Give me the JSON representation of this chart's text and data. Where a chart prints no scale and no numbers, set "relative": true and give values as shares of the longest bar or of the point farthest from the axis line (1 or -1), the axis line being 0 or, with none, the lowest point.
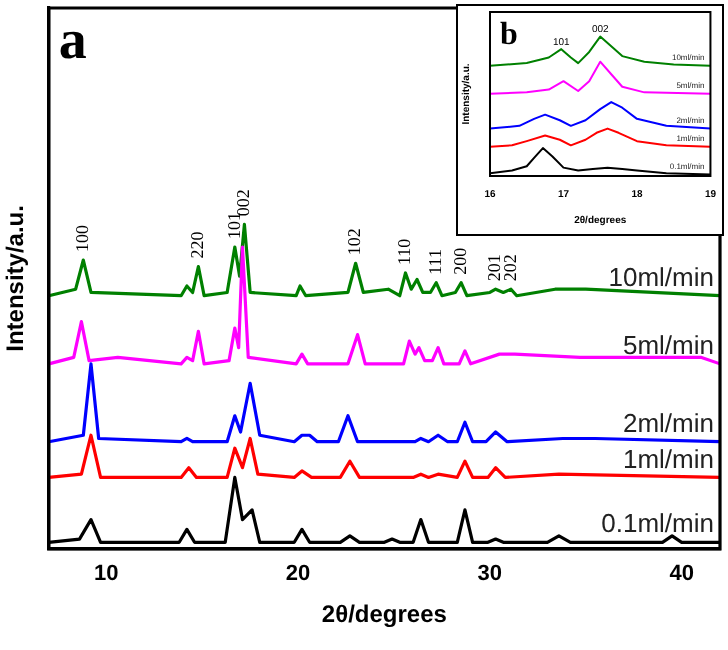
{
  "chart_data": [
    {
      "type": "line",
      "relative": true,
      "xlabel": "2θ/degrees",
      "ylabel": "Intensity/a.u.",
      "xlim": [
        7,
        42
      ],
      "xticks": [
        10,
        20,
        30,
        40
      ],
      "tick_labels": "x",
      "annotations": [
        "a",
        {
          "text": "100",
          "x": 8.8,
          "y": 0.89
        },
        {
          "text": "220",
          "x": 14.8,
          "y": 0.87
        },
        {
          "text": "101",
          "x": 16.7,
          "y": 0.93
        },
        {
          "text": "002",
          "x": 17.2,
          "y": 1
        },
        {
          "text": "102",
          "x": 23.0,
          "y": 0.88
        },
        {
          "text": "110",
          "x": 25.6,
          "y": 0.85
        },
        {
          "text": "111",
          "x": 27.2,
          "y": 0.82
        },
        {
          "text": "200",
          "x": 28.5,
          "y": 0.82
        },
        {
          "text": "201",
          "x": 30.3,
          "y": 0.8
        },
        {
          "text": "202",
          "x": 31.1,
          "y": 0.8
        }
      ],
      "series": [
        {
          "name": "0.1ml/min",
          "color": "#000000",
          "x": [
            7,
            8.6,
            9.2,
            9.7,
            13.8,
            14.2,
            14.6,
            16.2,
            16.7,
            17.1,
            17.6,
            18.0,
            19.8,
            20.2,
            20.6,
            22.2,
            22.7,
            23.2,
            24.5,
            24.9,
            25.3,
            26,
            26.4,
            26.8,
            28.3,
            28.7,
            29.1,
            29.9,
            30.3,
            30.7,
            33,
            33.6,
            34.2,
            39,
            39.5,
            40,
            42
          ],
          "values": [
            0.02,
            0.03,
            0.09,
            0.02,
            0.02,
            0.06,
            0.02,
            0.02,
            0.22,
            0.09,
            0.12,
            0.02,
            0.02,
            0.06,
            0.02,
            0.02,
            0.04,
            0.02,
            0.02,
            0.03,
            0.02,
            0.02,
            0.09,
            0.02,
            0.02,
            0.12,
            0.02,
            0.02,
            0.03,
            0.02,
            0.02,
            0.04,
            0.02,
            0.02,
            0.04,
            0.02,
            0.02
          ]
        },
        {
          "name": "1ml/min",
          "color": "#ff0000",
          "x": [
            7,
            8.7,
            9.2,
            9.7,
            13.9,
            14.3,
            14.7,
            16.3,
            16.7,
            17.1,
            17.5,
            17.9,
            19.8,
            20.2,
            20.7,
            22.2,
            22.7,
            23.2,
            26,
            26.4,
            26.8,
            27.3,
            28.3,
            28.7,
            29.1,
            29.9,
            30.3,
            30.8,
            33.6,
            42
          ],
          "values": [
            0.22,
            0.23,
            0.35,
            0.22,
            0.22,
            0.25,
            0.22,
            0.22,
            0.31,
            0.25,
            0.34,
            0.23,
            0.22,
            0.24,
            0.22,
            0.22,
            0.27,
            0.22,
            0.22,
            0.23,
            0.22,
            0.23,
            0.22,
            0.27,
            0.22,
            0.22,
            0.25,
            0.22,
            0.23,
            0.22
          ]
        },
        {
          "name": "2ml/min",
          "color": "#0000ff",
          "x": [
            7,
            8.8,
            9.2,
            9.6,
            13.9,
            14.2,
            14.5,
            16.3,
            16.7,
            17.0,
            17.5,
            18.0,
            19.8,
            20.2,
            20.4,
            20.6,
            21,
            22.1,
            22.6,
            23.1,
            26.1,
            26.4,
            26.8,
            27.3,
            27.8,
            28.3,
            28.7,
            29.1,
            29.8,
            30.3,
            30.9,
            33.8,
            35.5,
            42
          ],
          "values": [
            0.33,
            0.35,
            0.57,
            0.34,
            0.33,
            0.34,
            0.33,
            0.33,
            0.41,
            0.36,
            0.51,
            0.35,
            0.33,
            0.35,
            0.35,
            0.35,
            0.33,
            0.33,
            0.41,
            0.33,
            0.33,
            0.34,
            0.33,
            0.35,
            0.33,
            0.33,
            0.39,
            0.33,
            0.33,
            0.36,
            0.33,
            0.34,
            0.34,
            0.33
          ]
        },
        {
          "name": "5ml/min",
          "color": "#ff00ff",
          "x": [
            7,
            8.3,
            8.7,
            9.1,
            10.6,
            13.9,
            14.2,
            14.5,
            14.8,
            15.1,
            16.4,
            16.7,
            16.9,
            17.1,
            17.4,
            19.9,
            20.2,
            20.5,
            22.6,
            23.1,
            23.5,
            25.5,
            25.8,
            26.1,
            26.3,
            26.6,
            27.0,
            27.3,
            27.6,
            28.4,
            28.7,
            29,
            30.5,
            31.3,
            34.7,
            41,
            42
          ],
          "values": [
            0.57,
            0.59,
            0.7,
            0.58,
            0.59,
            0.57,
            0.59,
            0.58,
            0.67,
            0.57,
            0.58,
            0.68,
            0.62,
            0.93,
            0.59,
            0.57,
            0.6,
            0.57,
            0.57,
            0.66,
            0.57,
            0.57,
            0.64,
            0.6,
            0.62,
            0.58,
            0.58,
            0.62,
            0.57,
            0.57,
            0.61,
            0.57,
            0.6,
            0.6,
            0.59,
            0.59,
            0.57
          ]
        },
        {
          "name": "10ml/min",
          "color": "#008000",
          "x": [
            7,
            8.4,
            8.8,
            9.2,
            13.9,
            14.2,
            14.5,
            14.8,
            15.1,
            16.3,
            16.7,
            16.95,
            17.2,
            17.5,
            19.9,
            20.1,
            20.4,
            22.6,
            23.0,
            23.4,
            24.7,
            25.3,
            25.6,
            25.9,
            26.2,
            26.5,
            26.9,
            27.2,
            27.5,
            28.2,
            28.5,
            28.8,
            30.0,
            30.3,
            30.7,
            31.1,
            31.4,
            33.4,
            35,
            42
          ],
          "values": [
            0.78,
            0.8,
            0.89,
            0.79,
            0.78,
            0.81,
            0.79,
            0.87,
            0.78,
            0.79,
            0.93,
            0.84,
            1,
            0.79,
            0.78,
            0.81,
            0.78,
            0.79,
            0.88,
            0.79,
            0.8,
            0.78,
            0.85,
            0.8,
            0.83,
            0.79,
            0.79,
            0.82,
            0.78,
            0.79,
            0.82,
            0.78,
            0.79,
            0.8,
            0.79,
            0.8,
            0.78,
            0.8,
            0.8,
            0.78
          ]
        }
      ]
    },
    {
      "type": "line",
      "relative": true,
      "xlabel": "2θ/degrees",
      "ylabel": "Intensity/a.u.",
      "xlim": [
        16,
        19
      ],
      "xticks": [
        16,
        17,
        18,
        19
      ],
      "tick_labels": "x",
      "annotations": [
        "b",
        {
          "text": "101",
          "x": 16.97,
          "y": 0.91
        },
        {
          "text": "002",
          "x": 17.5,
          "y": 1
        }
      ],
      "series": [
        {
          "name": "0.1ml/min",
          "color": "#000000",
          "x": [
            16,
            16.3,
            16.5,
            16.6,
            16.72,
            16.85,
            17.0,
            17.2,
            17.4,
            17.6,
            17.8,
            18.0,
            18.4,
            19
          ],
          "values": [
            0.02,
            0.04,
            0.07,
            0.13,
            0.2,
            0.14,
            0.06,
            0.04,
            0.05,
            0.06,
            0.05,
            0.04,
            0.02,
            0.01
          ]
        },
        {
          "name": "1ml/min",
          "color": "#ff0000",
          "x": [
            16,
            16.3,
            16.5,
            16.75,
            16.95,
            17.1,
            17.3,
            17.45,
            17.6,
            17.75,
            18.0,
            18.4,
            19
          ],
          "values": [
            0.21,
            0.22,
            0.25,
            0.29,
            0.26,
            0.22,
            0.26,
            0.31,
            0.34,
            0.31,
            0.25,
            0.22,
            0.21
          ]
        },
        {
          "name": "2ml/min",
          "color": "#0000ff",
          "x": [
            16,
            16.4,
            16.6,
            16.75,
            16.95,
            17.1,
            17.3,
            17.5,
            17.65,
            17.8,
            18.0,
            18.4,
            19
          ],
          "values": [
            0.34,
            0.36,
            0.41,
            0.44,
            0.4,
            0.36,
            0.4,
            0.48,
            0.53,
            0.49,
            0.41,
            0.36,
            0.34
          ]
        },
        {
          "name": "5ml/min",
          "color": "#ff00ff",
          "x": [
            16,
            16.5,
            16.8,
            17.0,
            17.2,
            17.35,
            17.5,
            17.65,
            17.8,
            18.1,
            19
          ],
          "values": [
            0.59,
            0.6,
            0.62,
            0.68,
            0.61,
            0.68,
            0.82,
            0.73,
            0.64,
            0.6,
            0.59
          ]
        },
        {
          "name": "10ml/min",
          "color": "#008000",
          "x": [
            16,
            16.5,
            16.8,
            16.97,
            17.1,
            17.2,
            17.35,
            17.5,
            17.65,
            17.8,
            18.1,
            18.5,
            19
          ],
          "values": [
            0.79,
            0.81,
            0.85,
            0.91,
            0.85,
            0.81,
            0.89,
            1,
            0.93,
            0.86,
            0.82,
            0.8,
            0.79
          ]
        }
      ]
    }
  ]
}
